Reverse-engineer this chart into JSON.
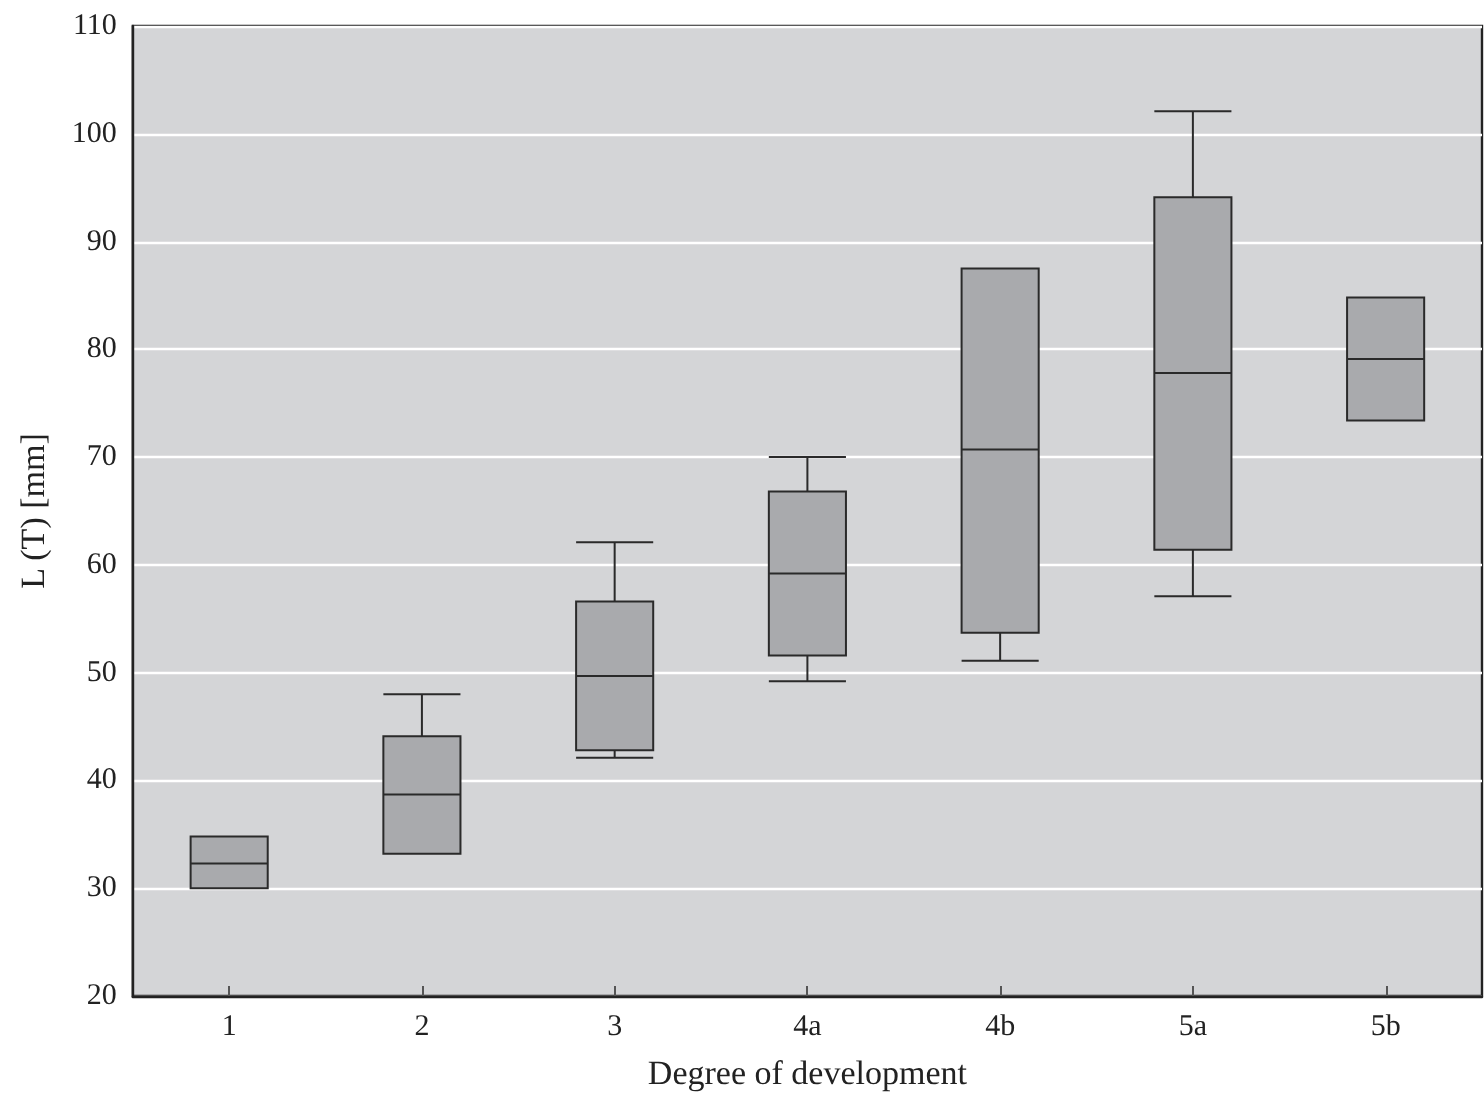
{
  "chart_data": {
    "type": "box",
    "xlabel": "Degree of development",
    "ylabel": "L (T) [mm]",
    "categories": [
      "1",
      "2",
      "3",
      "4a",
      "4b",
      "5a",
      "5b"
    ],
    "series": [
      {
        "color": "#a9aaad",
        "boxes": [
          {
            "low": 30,
            "q1": 30,
            "median": 32.3,
            "q3": 34.8,
            "high": 34.8
          },
          {
            "low": 33.2,
            "q1": 33.2,
            "median": 38.7,
            "q3": 44.1,
            "high": 48
          },
          {
            "low": 42.1,
            "q1": 42.8,
            "median": 49.7,
            "q3": 56.6,
            "high": 62.1
          },
          {
            "low": 49.2,
            "q1": 51.6,
            "median": 59.2,
            "q3": 66.8,
            "high": 70
          },
          {
            "low": 51.1,
            "q1": 53.7,
            "median": 70.7,
            "q3": 87.5,
            "high": 87.5
          },
          {
            "low": 57.1,
            "q1": 61.4,
            "median": 77.8,
            "q3": 94.1,
            "high": 102.1
          },
          {
            "low": 73.4,
            "q1": 73.4,
            "median": 79.1,
            "q3": 84.8,
            "high": 84.8
          }
        ]
      }
    ],
    "ylim": [
      20,
      110
    ],
    "yticks": [
      20,
      30,
      40,
      50,
      60,
      70,
      80,
      90,
      100,
      110
    ],
    "grid": "y"
  }
}
